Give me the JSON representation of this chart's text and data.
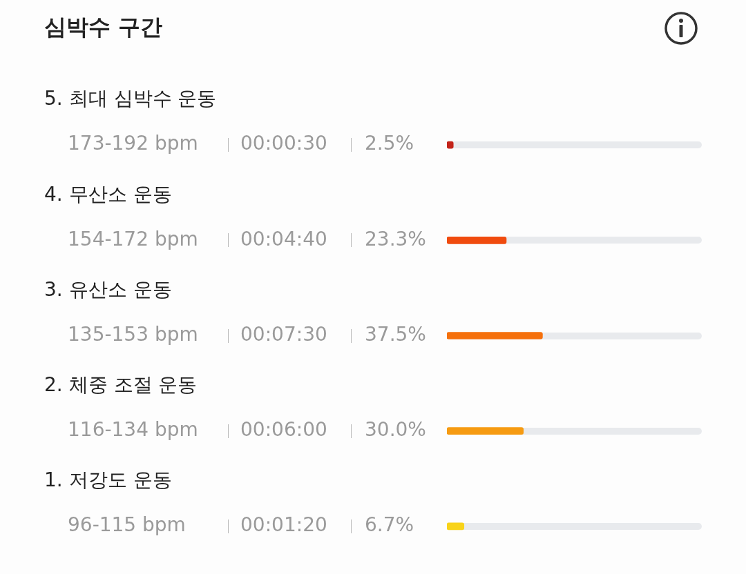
{
  "chart_data": {
    "type": "bar",
    "orientation": "horizontal",
    "title": "심박수 구간",
    "categories": [
      "5. 최대 심박수 운동",
      "4. 무산소 운동",
      "3. 유산소 운동",
      "2. 체중 조절 운동",
      "1. 저강도 운동"
    ],
    "values": [
      2.5,
      23.3,
      37.5,
      30.0,
      6.7
    ],
    "colors": [
      "#c3241a",
      "#f04b0e",
      "#f5700c",
      "#f69b12",
      "#f8d31a"
    ],
    "value_labels": [
      "2.5%",
      "23.3%",
      "37.5%",
      "30.0%",
      "6.7%"
    ],
    "xlim": [
      0,
      100
    ],
    "tick_labels": false,
    "annotations": [
      "173-192 bpm",
      "00:00:30",
      "154-172 bpm",
      "00:04:40",
      "135-153 bpm",
      "00:07:30",
      "116-134 bpm",
      "00:06:00",
      "96-115 bpm",
      "00:01:20"
    ]
  }
}
